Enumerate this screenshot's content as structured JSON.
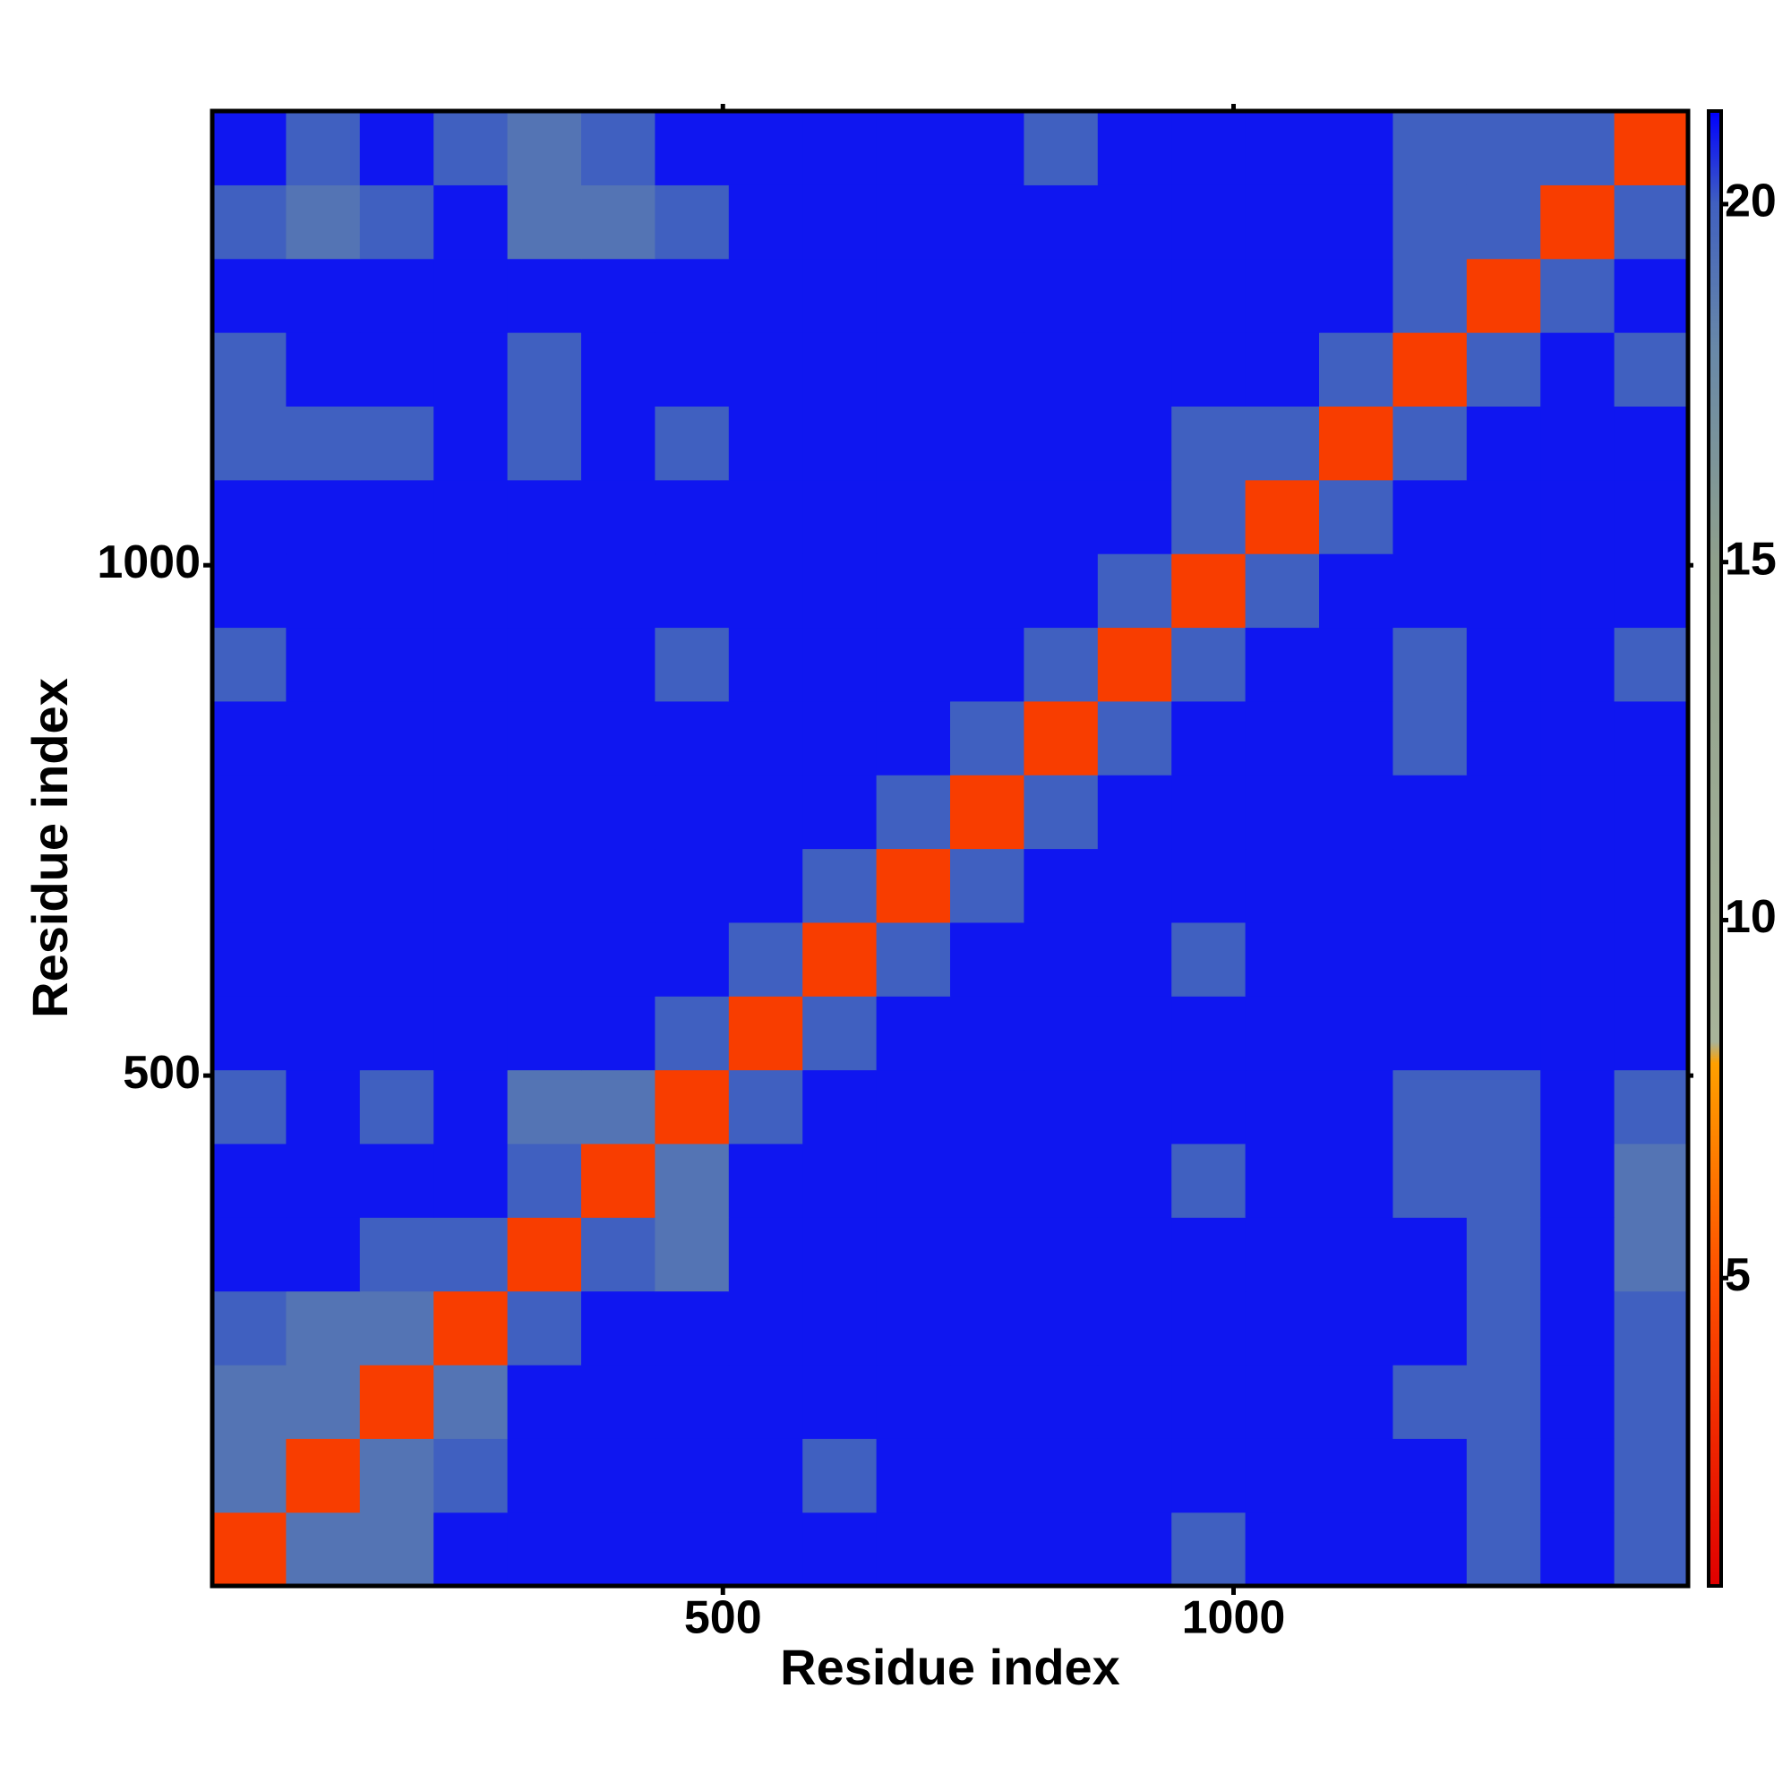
{
  "chart_data": {
    "type": "heatmap",
    "xlabel": "Residue index",
    "ylabel": "Residue index",
    "xlim": [
      0,
      1445
    ],
    "ylim": [
      0,
      1445
    ],
    "xticks": [
      500,
      1000
    ],
    "yticks": [
      500,
      1000
    ],
    "bins": [
      0,
      72.25,
      144.5,
      216.75,
      289,
      361.25,
      433.5,
      505.75,
      578,
      650.25,
      722.5,
      794.75,
      867,
      939.25,
      1011.5,
      1083.75,
      1156,
      1228.25,
      1300.5,
      1372.75,
      1445
    ],
    "values": [
      [
        4,
        19,
        19,
        21,
        21,
        21,
        21,
        21,
        21,
        21,
        21,
        21,
        21,
        20,
        21,
        21,
        21,
        20,
        21,
        20
      ],
      [
        19,
        4,
        19,
        20,
        21,
        21,
        21,
        21,
        20,
        21,
        21,
        21,
        21,
        21,
        21,
        21,
        21,
        20,
        21,
        20
      ],
      [
        19,
        19,
        4,
        19,
        21,
        21,
        21,
        21,
        21,
        21,
        21,
        21,
        21,
        21,
        21,
        21,
        20,
        20,
        21,
        20
      ],
      [
        20,
        19,
        19,
        4,
        20,
        21,
        21,
        21,
        21,
        21,
        21,
        21,
        21,
        21,
        21,
        21,
        21,
        20,
        21,
        20
      ],
      [
        21,
        21,
        20,
        20,
        4,
        20,
        19,
        21,
        21,
        21,
        21,
        21,
        21,
        21,
        21,
        21,
        21,
        20,
        21,
        19
      ],
      [
        21,
        21,
        21,
        21,
        20,
        4,
        19,
        21,
        21,
        21,
        21,
        21,
        21,
        20,
        21,
        21,
        20,
        20,
        21,
        19
      ],
      [
        20,
        21,
        20,
        21,
        19,
        19,
        4,
        20,
        21,
        21,
        21,
        21,
        21,
        21,
        21,
        21,
        20,
        20,
        21,
        20
      ],
      [
        21,
        21,
        21,
        21,
        21,
        21,
        20,
        4,
        20,
        21,
        21,
        21,
        21,
        21,
        21,
        21,
        21,
        21,
        21,
        21
      ],
      [
        21,
        21,
        21,
        21,
        21,
        21,
        21,
        20,
        4,
        20,
        21,
        21,
        21,
        20,
        21,
        21,
        21,
        21,
        21,
        21
      ],
      [
        21,
        21,
        21,
        21,
        21,
        21,
        21,
        21,
        20,
        4,
        20,
        21,
        21,
        21,
        21,
        21,
        21,
        21,
        21,
        21
      ],
      [
        21,
        21,
        21,
        21,
        21,
        21,
        21,
        21,
        21,
        20,
        4,
        20,
        21,
        21,
        21,
        21,
        21,
        21,
        21,
        21
      ],
      [
        21,
        21,
        21,
        21,
        21,
        21,
        21,
        21,
        21,
        21,
        20,
        4,
        20,
        21,
        21,
        21,
        20,
        21,
        21,
        21
      ],
      [
        20,
        21,
        21,
        21,
        21,
        21,
        20,
        21,
        21,
        21,
        21,
        20,
        4,
        20,
        21,
        21,
        20,
        21,
        21,
        20
      ],
      [
        21,
        21,
        21,
        21,
        21,
        21,
        21,
        21,
        21,
        21,
        21,
        21,
        20,
        4,
        20,
        21,
        21,
        21,
        21,
        21
      ],
      [
        21,
        21,
        21,
        21,
        21,
        21,
        21,
        21,
        21,
        21,
        21,
        21,
        21,
        20,
        4,
        20,
        21,
        21,
        21,
        21
      ],
      [
        20,
        20,
        20,
        21,
        20,
        21,
        20,
        21,
        21,
        21,
        21,
        21,
        21,
        20,
        20,
        4,
        20,
        21,
        21,
        21
      ],
      [
        20,
        21,
        21,
        21,
        20,
        21,
        21,
        21,
        21,
        21,
        21,
        21,
        21,
        21,
        21,
        20,
        4,
        20,
        21,
        20
      ],
      [
        21,
        21,
        21,
        21,
        21,
        21,
        21,
        21,
        21,
        21,
        21,
        21,
        21,
        21,
        21,
        21,
        20,
        4,
        20,
        21
      ],
      [
        20,
        19,
        20,
        21,
        19,
        19,
        20,
        21,
        21,
        21,
        21,
        21,
        21,
        21,
        21,
        21,
        20,
        20,
        4,
        20
      ],
      [
        21,
        20,
        21,
        20,
        19,
        20,
        21,
        21,
        21,
        21,
        21,
        20,
        21,
        21,
        21,
        21,
        20,
        20,
        20,
        4
      ]
    ],
    "clim": [
      0.7,
      21.3
    ],
    "cticks": [
      5,
      10,
      15,
      20
    ],
    "colorscale": [
      {
        "value": 0.7,
        "color": "#e00000"
      },
      {
        "value": 5,
        "color": "#ff5000"
      },
      {
        "value": 8,
        "color": "#ffa000"
      },
      {
        "value": 8.3,
        "color": "#a8b49a"
      },
      {
        "value": 15,
        "color": "#8fa08c"
      },
      {
        "value": 18,
        "color": "#6888a8"
      },
      {
        "value": 20,
        "color": "#4060c0"
      },
      {
        "value": 21.3,
        "color": "#0000ff"
      }
    ]
  }
}
